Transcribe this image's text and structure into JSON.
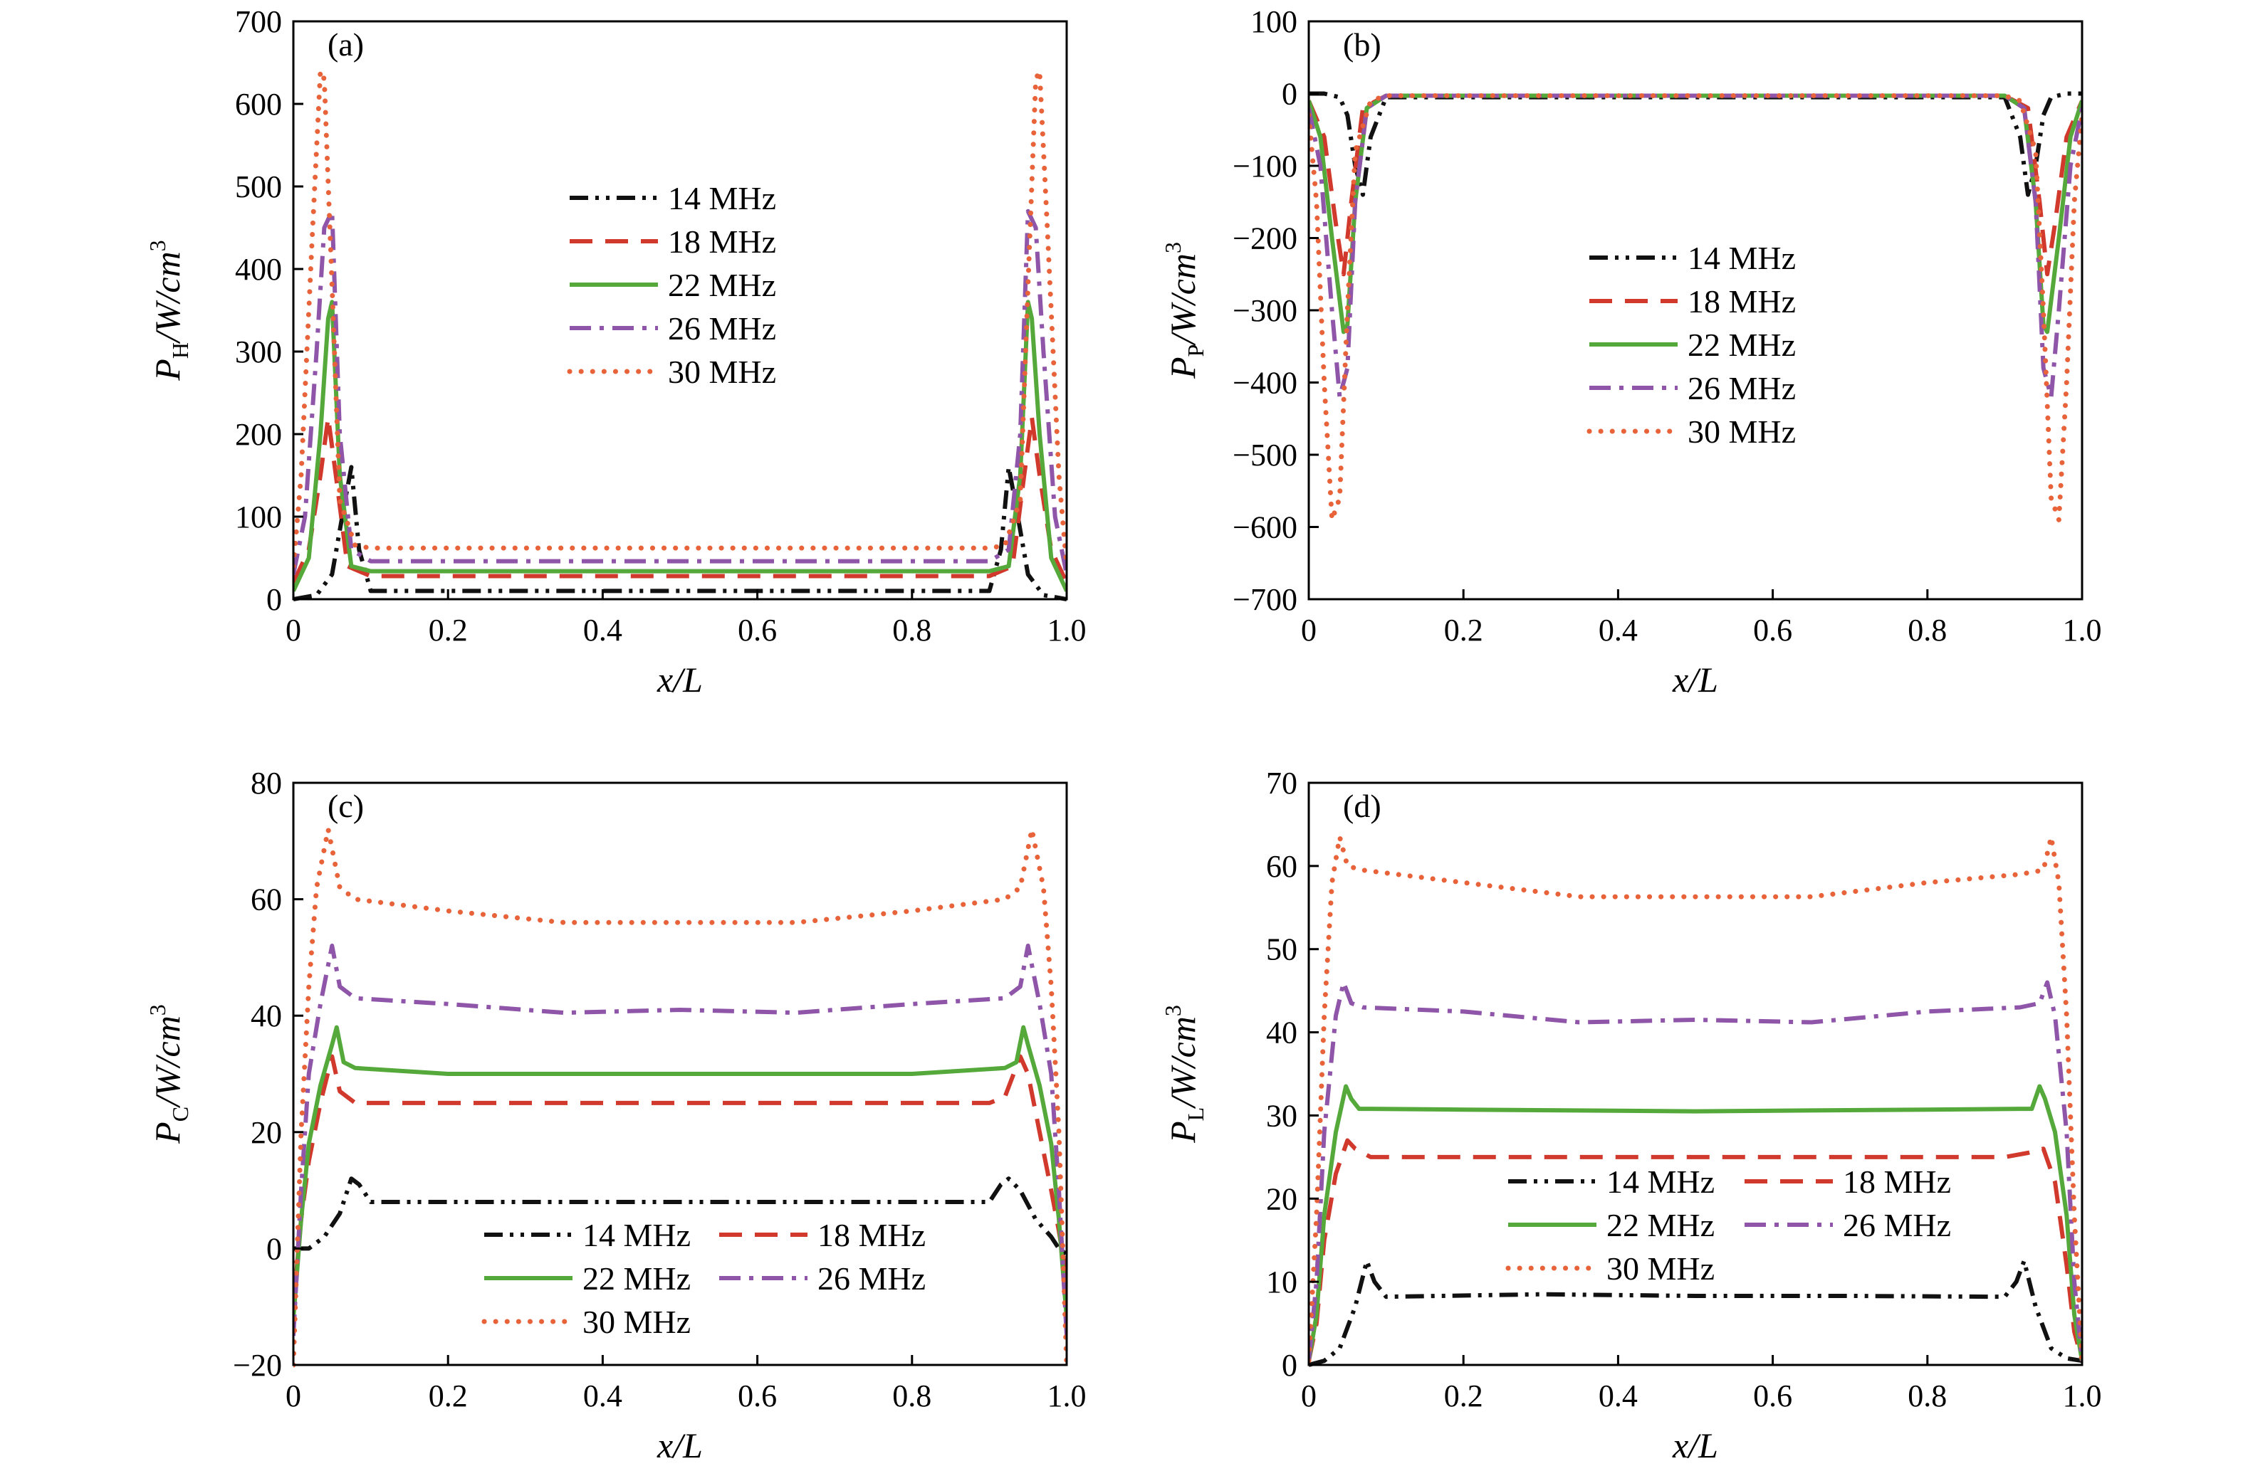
{
  "figure": {
    "colors": {
      "14 MHz": "#111111",
      "18 MHz": "#d0392b",
      "22 MHz": "#55a93b",
      "26 MHz": "#8e55a8",
      "30 MHz": "#e8633a"
    },
    "dash_styles": {
      "14 MHz": "dash-dot-dot",
      "18 MHz": "dashed",
      "22 MHz": "solid",
      "26 MHz": "dash-dot",
      "30 MHz": "dotted"
    }
  },
  "chart_data": [
    {
      "id": "a",
      "type": "line",
      "panel_label": "(a)",
      "xlabel": "x/L",
      "ylabel_main": "P",
      "ylabel_sub": "H",
      "ylabel_unit": "/W/cm",
      "ylabel_sup": "3",
      "xlim": [
        0,
        1
      ],
      "ylim": [
        0,
        700
      ],
      "xticks": [
        0,
        0.2,
        0.4,
        0.6,
        0.8,
        1.0
      ],
      "xtick_labels": [
        "0",
        "0.2",
        "0.4",
        "0.6",
        "0.8",
        "1.0"
      ],
      "yticks": [
        0,
        100,
        200,
        300,
        400,
        500,
        600,
        700
      ],
      "ytick_labels": [
        "0",
        "100",
        "200",
        "300",
        "400",
        "500",
        "600",
        "700"
      ],
      "legend": {
        "placement": "upper-center",
        "columns": 1
      },
      "series": [
        {
          "name": "14 MHz",
          "x": [
            0,
            0.03,
            0.05,
            0.065,
            0.075,
            0.085,
            0.1,
            0.5,
            0.9,
            0.915,
            0.925,
            0.935,
            0.95,
            0.97,
            1.0
          ],
          "y": [
            0,
            5,
            30,
            110,
            160,
            60,
            10,
            10,
            10,
            60,
            160,
            110,
            30,
            5,
            0
          ]
        },
        {
          "name": "18 MHz",
          "x": [
            0,
            0.02,
            0.035,
            0.045,
            0.055,
            0.07,
            0.1,
            0.5,
            0.9,
            0.93,
            0.945,
            0.955,
            0.965,
            0.98,
            1.0
          ],
          "y": [
            20,
            60,
            150,
            220,
            150,
            40,
            28,
            28,
            28,
            40,
            150,
            220,
            150,
            60,
            20
          ]
        },
        {
          "name": "22 MHz",
          "x": [
            0,
            0.02,
            0.035,
            0.045,
            0.05,
            0.06,
            0.075,
            0.1,
            0.5,
            0.9,
            0.925,
            0.94,
            0.95,
            0.955,
            0.965,
            0.98,
            1.0
          ],
          "y": [
            10,
            50,
            200,
            340,
            360,
            150,
            40,
            34,
            34,
            34,
            40,
            150,
            360,
            340,
            200,
            50,
            10
          ]
        },
        {
          "name": "26 MHz",
          "x": [
            0,
            0.015,
            0.03,
            0.04,
            0.05,
            0.06,
            0.075,
            0.1,
            0.5,
            0.9,
            0.925,
            0.94,
            0.95,
            0.96,
            0.97,
            0.985,
            1.0
          ],
          "y": [
            30,
            100,
            300,
            450,
            470,
            200,
            60,
            46,
            46,
            46,
            60,
            200,
            470,
            450,
            300,
            100,
            30
          ]
        },
        {
          "name": "30 MHz",
          "x": [
            0,
            0.01,
            0.025,
            0.035,
            0.04,
            0.05,
            0.06,
            0.08,
            0.1,
            0.5,
            0.9,
            0.92,
            0.94,
            0.95,
            0.96,
            0.965,
            0.975,
            0.99,
            1.0
          ],
          "y": [
            40,
            150,
            450,
            640,
            630,
            380,
            120,
            65,
            62,
            62,
            62,
            65,
            120,
            380,
            630,
            640,
            450,
            150,
            40
          ]
        }
      ]
    },
    {
      "id": "b",
      "type": "line",
      "panel_label": "(b)",
      "xlabel": "x/L",
      "ylabel_main": "P",
      "ylabel_sub": "P",
      "ylabel_unit": "/W/cm",
      "ylabel_sup": "3",
      "xlim": [
        0,
        1
      ],
      "ylim": [
        -700,
        100
      ],
      "xticks": [
        0,
        0.2,
        0.4,
        0.6,
        0.8,
        1.0
      ],
      "xtick_labels": [
        "0",
        "0.2",
        "0.4",
        "0.6",
        "0.8",
        "1.0"
      ],
      "yticks": [
        -700,
        -600,
        -500,
        -400,
        -300,
        -200,
        -100,
        0,
        100
      ],
      "ytick_labels": [
        "−700",
        "−600",
        "−500",
        "−400",
        "−300",
        "−200",
        "−100",
        "0",
        "100"
      ],
      "legend": {
        "placement": "center",
        "columns": 1
      },
      "series": [
        {
          "name": "14 MHz",
          "x": [
            0,
            0.02,
            0.04,
            0.05,
            0.06,
            0.07,
            0.08,
            0.1,
            0.5,
            0.9,
            0.92,
            0.93,
            0.94,
            0.95,
            0.96,
            0.98,
            1.0
          ],
          "y": [
            0,
            0,
            -5,
            -30,
            -100,
            -140,
            -60,
            -5,
            -5,
            -5,
            -60,
            -140,
            -100,
            -30,
            -5,
            0,
            0
          ]
        },
        {
          "name": "18 MHz",
          "x": [
            0,
            0.02,
            0.035,
            0.045,
            0.055,
            0.07,
            0.1,
            0.5,
            0.9,
            0.93,
            0.945,
            0.955,
            0.965,
            0.98,
            1.0
          ],
          "y": [
            -10,
            -60,
            -180,
            -250,
            -150,
            -20,
            -3,
            -3,
            -3,
            -20,
            -150,
            -250,
            -180,
            -60,
            -10
          ]
        },
        {
          "name": "22 MHz",
          "x": [
            0,
            0.015,
            0.03,
            0.045,
            0.05,
            0.06,
            0.075,
            0.1,
            0.5,
            0.9,
            0.925,
            0.94,
            0.95,
            0.955,
            0.97,
            0.985,
            1.0
          ],
          "y": [
            -10,
            -60,
            -200,
            -330,
            -320,
            -150,
            -20,
            -3,
            -3,
            -3,
            -20,
            -150,
            -320,
            -330,
            -200,
            -60,
            -10
          ]
        },
        {
          "name": "26 MHz",
          "x": [
            0,
            0.015,
            0.03,
            0.04,
            0.05,
            0.06,
            0.075,
            0.1,
            0.5,
            0.9,
            0.925,
            0.94,
            0.95,
            0.96,
            0.97,
            0.985,
            1.0
          ],
          "y": [
            -20,
            -100,
            -300,
            -420,
            -380,
            -150,
            -20,
            -3,
            -3,
            -3,
            -20,
            -150,
            -380,
            -420,
            -300,
            -100,
            -20
          ]
        },
        {
          "name": "30 MHz",
          "x": [
            0,
            0.01,
            0.02,
            0.03,
            0.04,
            0.05,
            0.06,
            0.08,
            0.1,
            0.5,
            0.9,
            0.92,
            0.94,
            0.95,
            0.96,
            0.97,
            0.98,
            0.99,
            1.0
          ],
          "y": [
            -30,
            -150,
            -400,
            -590,
            -560,
            -300,
            -80,
            -10,
            -3,
            -3,
            -3,
            -10,
            -80,
            -300,
            -560,
            -590,
            -400,
            -150,
            -30
          ]
        }
      ]
    },
    {
      "id": "c",
      "type": "line",
      "panel_label": "(c)",
      "xlabel": "x/L",
      "ylabel_main": "P",
      "ylabel_sub": "C",
      "ylabel_unit": "/W/cm",
      "ylabel_sup": "3",
      "xlim": [
        0,
        1
      ],
      "ylim": [
        -20,
        80
      ],
      "xticks": [
        0,
        0.2,
        0.4,
        0.6,
        0.8,
        1.0
      ],
      "xtick_labels": [
        "0",
        "0.2",
        "0.4",
        "0.6",
        "0.8",
        "1.0"
      ],
      "yticks": [
        -20,
        0,
        20,
        40,
        60,
        80
      ],
      "ytick_labels": [
        "−20",
        "0",
        "20",
        "40",
        "60",
        "80"
      ],
      "legend": {
        "placement": "bottom-center",
        "columns": 2
      },
      "series": [
        {
          "name": "14 MHz",
          "x": [
            0,
            0.02,
            0.04,
            0.06,
            0.075,
            0.085,
            0.1,
            0.3,
            0.5,
            0.7,
            0.9,
            0.915,
            0.925,
            0.94,
            0.96,
            0.98,
            0.99,
            1.0
          ],
          "y": [
            0,
            0,
            2,
            6,
            12,
            11,
            8,
            8,
            8,
            8,
            8,
            11,
            12,
            10,
            5,
            2,
            0,
            -1
          ]
        },
        {
          "name": "18 MHz",
          "x": [
            0,
            0.01,
            0.02,
            0.035,
            0.05,
            0.06,
            0.08,
            0.1,
            0.5,
            0.9,
            0.92,
            0.94,
            0.95,
            0.965,
            0.98,
            0.99,
            1.0
          ],
          "y": [
            -10,
            5,
            15,
            25,
            33,
            27,
            25,
            25,
            25,
            25,
            26,
            33,
            30,
            20,
            10,
            3,
            -5
          ]
        },
        {
          "name": "22 MHz",
          "x": [
            0,
            0.01,
            0.02,
            0.035,
            0.05,
            0.056,
            0.065,
            0.08,
            0.2,
            0.5,
            0.8,
            0.92,
            0.935,
            0.944,
            0.95,
            0.965,
            0.98,
            0.99,
            1.0
          ],
          "y": [
            -12,
            5,
            18,
            28,
            35,
            38,
            32,
            31,
            30,
            30,
            30,
            31,
            32,
            38,
            35,
            28,
            18,
            5,
            -12
          ]
        },
        {
          "name": "26 MHz",
          "x": [
            0,
            0.01,
            0.02,
            0.035,
            0.05,
            0.06,
            0.08,
            0.2,
            0.35,
            0.5,
            0.65,
            0.8,
            0.92,
            0.94,
            0.95,
            0.965,
            0.98,
            0.99,
            1.0
          ],
          "y": [
            -15,
            10,
            30,
            42,
            52,
            45,
            43,
            42,
            40.5,
            41,
            40.5,
            42,
            43,
            45,
            52,
            42,
            30,
            10,
            -15
          ]
        },
        {
          "name": "30 MHz",
          "x": [
            0,
            0.01,
            0.02,
            0.03,
            0.045,
            0.06,
            0.08,
            0.2,
            0.35,
            0.5,
            0.65,
            0.8,
            0.92,
            0.94,
            0.955,
            0.97,
            0.98,
            0.99,
            1.0
          ],
          "y": [
            -20,
            20,
            45,
            62,
            72,
            62,
            60,
            58,
            56,
            56,
            56,
            58,
            60,
            62,
            72,
            62,
            45,
            20,
            -20
          ]
        }
      ]
    },
    {
      "id": "d",
      "type": "line",
      "panel_label": "(d)",
      "xlabel": "x/L",
      "ylabel_main": "P",
      "ylabel_sub": "L",
      "ylabel_unit": "/W/cm",
      "ylabel_sup": "3",
      "xlim": [
        0,
        1
      ],
      "ylim": [
        0,
        70
      ],
      "xticks": [
        0,
        0.2,
        0.4,
        0.6,
        0.8,
        1.0
      ],
      "xtick_labels": [
        "0",
        "0.2",
        "0.4",
        "0.6",
        "0.8",
        "1.0"
      ],
      "yticks": [
        0,
        10,
        20,
        30,
        40,
        50,
        60,
        70
      ],
      "ytick_labels": [
        "0",
        "10",
        "20",
        "30",
        "40",
        "50",
        "60",
        "70"
      ],
      "legend": {
        "placement": "lower-center",
        "columns": 2
      },
      "series": [
        {
          "name": "14 MHz",
          "x": [
            0,
            0.02,
            0.04,
            0.06,
            0.075,
            0.085,
            0.1,
            0.3,
            0.5,
            0.7,
            0.9,
            0.915,
            0.925,
            0.94,
            0.96,
            0.98,
            1.0
          ],
          "y": [
            0,
            0.5,
            2,
            7,
            12.5,
            10,
            8.2,
            8.5,
            8.3,
            8.3,
            8.2,
            10,
            12.5,
            7,
            2,
            0.8,
            0.5
          ]
        },
        {
          "name": "18 MHz",
          "x": [
            0,
            0.01,
            0.02,
            0.035,
            0.05,
            0.06,
            0.08,
            0.1,
            0.5,
            0.9,
            0.93,
            0.95,
            0.965,
            0.98,
            0.99,
            1.0
          ],
          "y": [
            0.5,
            5,
            15,
            23,
            27,
            26,
            25,
            25,
            25,
            25,
            25.5,
            26,
            22,
            12,
            4,
            0.5
          ]
        },
        {
          "name": "22 MHz",
          "x": [
            0,
            0.01,
            0.02,
            0.035,
            0.048,
            0.055,
            0.065,
            0.08,
            0.2,
            0.5,
            0.8,
            0.92,
            0.935,
            0.945,
            0.952,
            0.965,
            0.98,
            0.99,
            1.0
          ],
          "y": [
            0.5,
            6,
            18,
            28,
            33.5,
            32,
            30.8,
            30.8,
            30.7,
            30.5,
            30.7,
            30.8,
            30.8,
            33.5,
            32,
            28,
            18,
            6,
            0.5
          ]
        },
        {
          "name": "26 MHz",
          "x": [
            0,
            0.01,
            0.02,
            0.035,
            0.045,
            0.055,
            0.07,
            0.2,
            0.35,
            0.5,
            0.65,
            0.8,
            0.92,
            0.945,
            0.955,
            0.965,
            0.98,
            0.99,
            1.0
          ],
          "y": [
            0.5,
            10,
            28,
            42,
            46,
            43.5,
            43,
            42.5,
            41.2,
            41.5,
            41.2,
            42.5,
            43,
            43.5,
            46,
            42,
            28,
            10,
            0.5
          ]
        },
        {
          "name": "30 MHz",
          "x": [
            0,
            0.01,
            0.02,
            0.03,
            0.04,
            0.05,
            0.07,
            0.2,
            0.35,
            0.5,
            0.65,
            0.8,
            0.92,
            0.95,
            0.96,
            0.97,
            0.98,
            0.99,
            1.0
          ],
          "y": [
            0.5,
            18,
            42,
            58,
            63.5,
            60,
            59.5,
            58,
            56.3,
            56.3,
            56.3,
            58,
            59,
            59.5,
            63.5,
            58,
            42,
            18,
            0.5
          ]
        }
      ]
    }
  ],
  "legend_entries": [
    [
      "14 MHz",
      "18 MHz",
      "22 MHz",
      "26 MHz",
      "30 MHz"
    ],
    [
      "14 MHz",
      "18 MHz",
      "22 MHz",
      "26 MHz",
      "30 MHz"
    ],
    [
      "14 MHz",
      "18 MHz",
      "22 MHz",
      "26 MHz",
      "30 MHz"
    ],
    [
      "14 MHz",
      "18 MHz",
      "22 MHz",
      "26 MHz",
      "30 MHz"
    ]
  ]
}
